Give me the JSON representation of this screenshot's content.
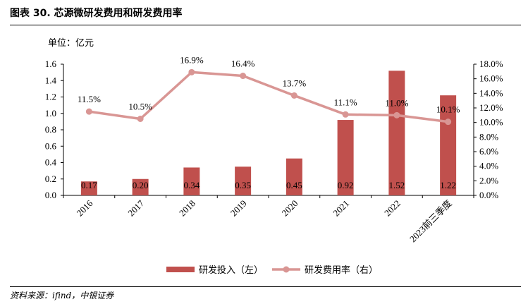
{
  "header": {
    "title": "图表 30. 芯源微研发费用和研发费用率",
    "unit_label": "单位：亿元"
  },
  "footer": {
    "source": "资料来源：ifind，中银证券"
  },
  "colors": {
    "bar": "#c0504d",
    "line": "#d99694"
  },
  "chart_data": {
    "type": "bar",
    "categories": [
      "2016",
      "2017",
      "2018",
      "2019",
      "2020",
      "2021",
      "2022",
      "2023前三季度"
    ],
    "series": [
      {
        "name": "研发投入（左）",
        "type": "bar",
        "axis": "left",
        "values": [
          0.17,
          0.2,
          0.34,
          0.35,
          0.45,
          0.92,
          1.52,
          1.22
        ],
        "labels": [
          "0.17",
          "0.20",
          "0.34",
          "0.35",
          "0.45",
          "0.92",
          "1.52",
          "1.22"
        ]
      },
      {
        "name": "研发费用率（右）",
        "type": "line",
        "axis": "right",
        "values": [
          11.5,
          10.5,
          16.9,
          16.4,
          13.7,
          11.1,
          11.0,
          10.1
        ],
        "labels": [
          "11.5%",
          "10.5%",
          "16.9%",
          "16.4%",
          "13.7%",
          "11.1%",
          "11.0%",
          "10.1%"
        ]
      }
    ],
    "y_left": {
      "ylim": [
        0,
        1.6
      ],
      "ticks": [
        "0.0",
        "0.2",
        "0.4",
        "0.6",
        "0.8",
        "1.0",
        "1.2",
        "1.4",
        "1.6"
      ]
    },
    "y_right": {
      "ylim": [
        0,
        18
      ],
      "ticks": [
        "0.0%",
        "2.0%",
        "4.0%",
        "6.0%",
        "8.0%",
        "10.0%",
        "12.0%",
        "14.0%",
        "16.0%",
        "18.0%"
      ]
    },
    "grid": false,
    "legend_position": "bottom"
  }
}
